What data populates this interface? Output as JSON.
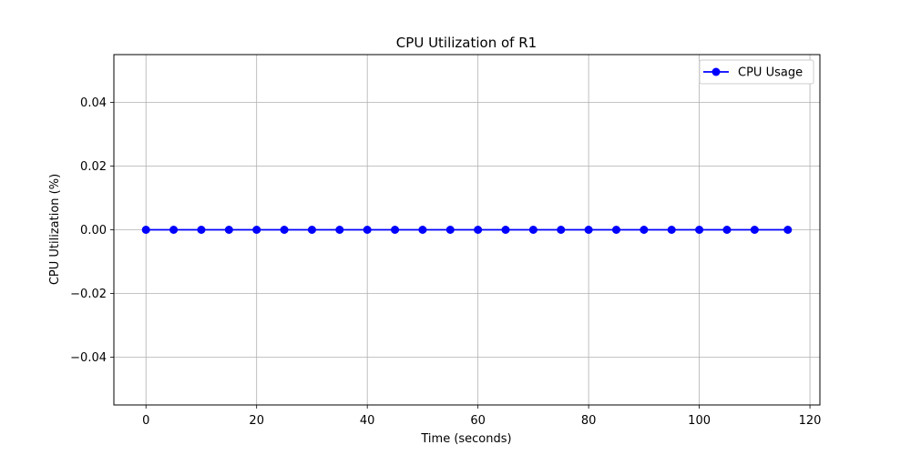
{
  "chart_data": {
    "type": "line",
    "title": "CPU Utilization of R1",
    "xlabel": "Time (seconds)",
    "ylabel": "CPU Utilization (%)",
    "xlim": [
      -5.8,
      121.8
    ],
    "ylim": [
      -0.055,
      0.055
    ],
    "xticks": [
      0,
      20,
      40,
      60,
      80,
      100,
      120
    ],
    "yticks": [
      -0.04,
      -0.02,
      0.0,
      0.02,
      0.04
    ],
    "xtick_labels": [
      "0",
      "20",
      "40",
      "60",
      "80",
      "100",
      "120"
    ],
    "ytick_labels": [
      "−0.04",
      "−0.02",
      "0.00",
      "0.02",
      "0.04"
    ],
    "grid": true,
    "legend": "top-right",
    "series": [
      {
        "name": "CPU Usage",
        "color": "#0000ff",
        "marker": "circle",
        "x": [
          0,
          5,
          10,
          15,
          20,
          25,
          30,
          35,
          40,
          45,
          50,
          55,
          60,
          65,
          70,
          75,
          80,
          85,
          90,
          95,
          100,
          105,
          110,
          116
        ],
        "y": [
          0,
          0,
          0,
          0,
          0,
          0,
          0,
          0,
          0,
          0,
          0,
          0,
          0,
          0,
          0,
          0,
          0,
          0,
          0,
          0,
          0,
          0,
          0,
          0
        ]
      }
    ]
  }
}
